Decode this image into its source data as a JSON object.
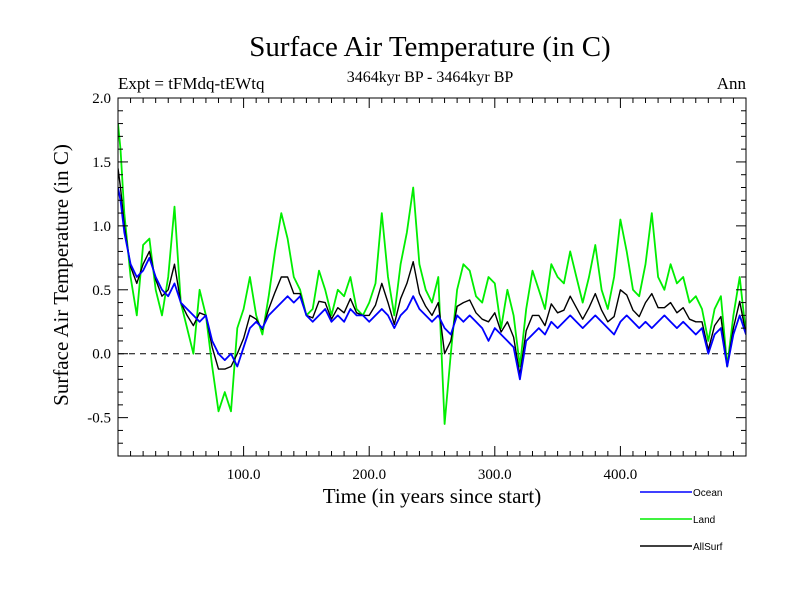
{
  "chart_data": {
    "type": "line",
    "title": "Surface Air Temperature (in C)",
    "subtitle": "3464kyr BP - 3464kyr BP",
    "left_label": "Expt = tFMdq-tEWtq",
    "right_label": "Ann",
    "xlabel": "Time (in years since start)",
    "ylabel": "Surface Air Temperature (in C)",
    "xlim": [
      0,
      500
    ],
    "ylim": [
      -0.8,
      2.0
    ],
    "xticks": [
      100,
      200,
      300,
      400
    ],
    "xtick_labels": [
      "100.0",
      "200.0",
      "300.0",
      "400.0"
    ],
    "yticks": [
      -0.5,
      0.0,
      0.5,
      1.0,
      1.5,
      2.0
    ],
    "ytick_labels": [
      "-0.5",
      "0.0",
      "0.5",
      "1.0",
      "1.5",
      "2.0"
    ],
    "reference_line": 0.0,
    "legend_position": "bottom-right",
    "series": [
      {
        "name": "Ocean",
        "color": "#0000ff",
        "x": [
          0,
          2,
          5,
          10,
          15,
          20,
          25,
          30,
          35,
          40,
          45,
          50,
          55,
          60,
          65,
          70,
          75,
          80,
          85,
          90,
          95,
          100,
          105,
          110,
          115,
          120,
          125,
          130,
          135,
          140,
          145,
          150,
          155,
          160,
          165,
          170,
          175,
          180,
          185,
          190,
          195,
          200,
          205,
          210,
          215,
          220,
          225,
          230,
          235,
          240,
          245,
          250,
          255,
          260,
          265,
          270,
          275,
          280,
          285,
          290,
          295,
          300,
          305,
          310,
          315,
          320,
          325,
          330,
          335,
          340,
          345,
          350,
          355,
          360,
          365,
          370,
          375,
          380,
          385,
          390,
          395,
          400,
          405,
          410,
          415,
          420,
          425,
          430,
          435,
          440,
          445,
          450,
          455,
          460,
          465,
          470,
          475,
          480,
          485,
          490,
          495,
          500
        ],
        "values": [
          1.3,
          1.2,
          0.95,
          0.7,
          0.6,
          0.65,
          0.75,
          0.6,
          0.5,
          0.45,
          0.55,
          0.4,
          0.35,
          0.3,
          0.25,
          0.3,
          0.1,
          0.0,
          -0.05,
          0.0,
          -0.1,
          0.05,
          0.2,
          0.25,
          0.2,
          0.3,
          0.35,
          0.4,
          0.45,
          0.4,
          0.45,
          0.3,
          0.25,
          0.3,
          0.35,
          0.25,
          0.3,
          0.25,
          0.35,
          0.3,
          0.3,
          0.25,
          0.3,
          0.35,
          0.3,
          0.2,
          0.3,
          0.35,
          0.45,
          0.35,
          0.3,
          0.25,
          0.3,
          0.2,
          0.15,
          0.3,
          0.25,
          0.3,
          0.25,
          0.2,
          0.1,
          0.2,
          0.15,
          0.1,
          0.05,
          -0.2,
          0.1,
          0.15,
          0.2,
          0.15,
          0.25,
          0.2,
          0.25,
          0.3,
          0.25,
          0.2,
          0.25,
          0.3,
          0.25,
          0.2,
          0.15,
          0.25,
          0.3,
          0.25,
          0.2,
          0.25,
          0.2,
          0.25,
          0.3,
          0.25,
          0.2,
          0.25,
          0.2,
          0.15,
          0.2,
          0.0,
          0.15,
          0.2,
          -0.1,
          0.15,
          0.3,
          0.15
        ]
      },
      {
        "name": "Land",
        "color": "#00ee00",
        "x": [
          0,
          2,
          5,
          10,
          15,
          20,
          25,
          30,
          35,
          40,
          45,
          50,
          55,
          60,
          65,
          70,
          75,
          80,
          85,
          90,
          95,
          100,
          105,
          110,
          115,
          120,
          125,
          130,
          135,
          140,
          145,
          150,
          155,
          160,
          165,
          170,
          175,
          180,
          185,
          190,
          195,
          200,
          205,
          210,
          215,
          220,
          225,
          230,
          235,
          240,
          245,
          250,
          255,
          260,
          265,
          270,
          275,
          280,
          285,
          290,
          295,
          300,
          305,
          310,
          315,
          320,
          325,
          330,
          335,
          340,
          345,
          350,
          355,
          360,
          365,
          370,
          375,
          380,
          385,
          390,
          395,
          400,
          405,
          410,
          415,
          420,
          425,
          430,
          435,
          440,
          445,
          450,
          455,
          460,
          465,
          470,
          475,
          480,
          485,
          490,
          495,
          500
        ],
        "values": [
          1.8,
          1.6,
          1.1,
          0.6,
          0.3,
          0.85,
          0.9,
          0.5,
          0.3,
          0.6,
          1.15,
          0.4,
          0.2,
          0.0,
          0.5,
          0.3,
          -0.1,
          -0.45,
          -0.3,
          -0.45,
          0.2,
          0.35,
          0.6,
          0.3,
          0.15,
          0.45,
          0.8,
          1.1,
          0.9,
          0.6,
          0.5,
          0.3,
          0.35,
          0.65,
          0.5,
          0.3,
          0.5,
          0.45,
          0.6,
          0.35,
          0.3,
          0.4,
          0.55,
          1.1,
          0.6,
          0.3,
          0.7,
          0.95,
          1.3,
          0.7,
          0.5,
          0.4,
          0.6,
          -0.55,
          0.0,
          0.5,
          0.7,
          0.65,
          0.45,
          0.4,
          0.6,
          0.55,
          0.2,
          0.5,
          0.3,
          -0.1,
          0.35,
          0.65,
          0.5,
          0.35,
          0.7,
          0.6,
          0.55,
          0.8,
          0.6,
          0.4,
          0.6,
          0.85,
          0.5,
          0.35,
          0.6,
          1.05,
          0.8,
          0.5,
          0.45,
          0.7,
          1.1,
          0.6,
          0.5,
          0.7,
          0.55,
          0.6,
          0.4,
          0.45,
          0.35,
          0.1,
          0.35,
          0.45,
          -0.1,
          0.3,
          0.6,
          0.15
        ]
      },
      {
        "name": "AllSurf",
        "color": "#000000",
        "x": [
          0,
          2,
          5,
          10,
          15,
          20,
          25,
          30,
          35,
          40,
          45,
          50,
          55,
          60,
          65,
          70,
          75,
          80,
          85,
          90,
          95,
          100,
          105,
          110,
          115,
          120,
          125,
          130,
          135,
          140,
          145,
          150,
          155,
          160,
          165,
          170,
          175,
          180,
          185,
          190,
          195,
          200,
          205,
          210,
          215,
          220,
          225,
          230,
          235,
          240,
          245,
          250,
          255,
          260,
          265,
          270,
          275,
          280,
          285,
          290,
          295,
          300,
          305,
          310,
          315,
          320,
          325,
          330,
          335,
          340,
          345,
          350,
          355,
          360,
          365,
          370,
          375,
          380,
          385,
          390,
          395,
          400,
          405,
          410,
          415,
          420,
          425,
          430,
          435,
          440,
          445,
          450,
          455,
          460,
          465,
          470,
          475,
          480,
          485,
          490,
          495,
          500
        ],
        "values": [
          1.45,
          1.3,
          1.0,
          0.68,
          0.55,
          0.7,
          0.8,
          0.58,
          0.45,
          0.5,
          0.7,
          0.4,
          0.3,
          0.22,
          0.32,
          0.3,
          0.05,
          -0.12,
          -0.12,
          -0.1,
          0.0,
          0.12,
          0.3,
          0.27,
          0.19,
          0.35,
          0.48,
          0.6,
          0.6,
          0.47,
          0.47,
          0.3,
          0.28,
          0.41,
          0.4,
          0.27,
          0.36,
          0.32,
          0.43,
          0.32,
          0.3,
          0.3,
          0.38,
          0.55,
          0.4,
          0.23,
          0.43,
          0.55,
          0.72,
          0.47,
          0.37,
          0.3,
          0.4,
          0.0,
          0.1,
          0.37,
          0.4,
          0.42,
          0.32,
          0.27,
          0.25,
          0.32,
          0.17,
          0.25,
          0.13,
          -0.17,
          0.18,
          0.3,
          0.3,
          0.22,
          0.39,
          0.32,
          0.34,
          0.45,
          0.36,
          0.27,
          0.36,
          0.47,
          0.34,
          0.25,
          0.29,
          0.5,
          0.46,
          0.34,
          0.29,
          0.4,
          0.47,
          0.36,
          0.36,
          0.4,
          0.32,
          0.36,
          0.27,
          0.25,
          0.25,
          0.03,
          0.22,
          0.29,
          -0.1,
          0.2,
          0.41,
          0.15
        ]
      }
    ]
  }
}
